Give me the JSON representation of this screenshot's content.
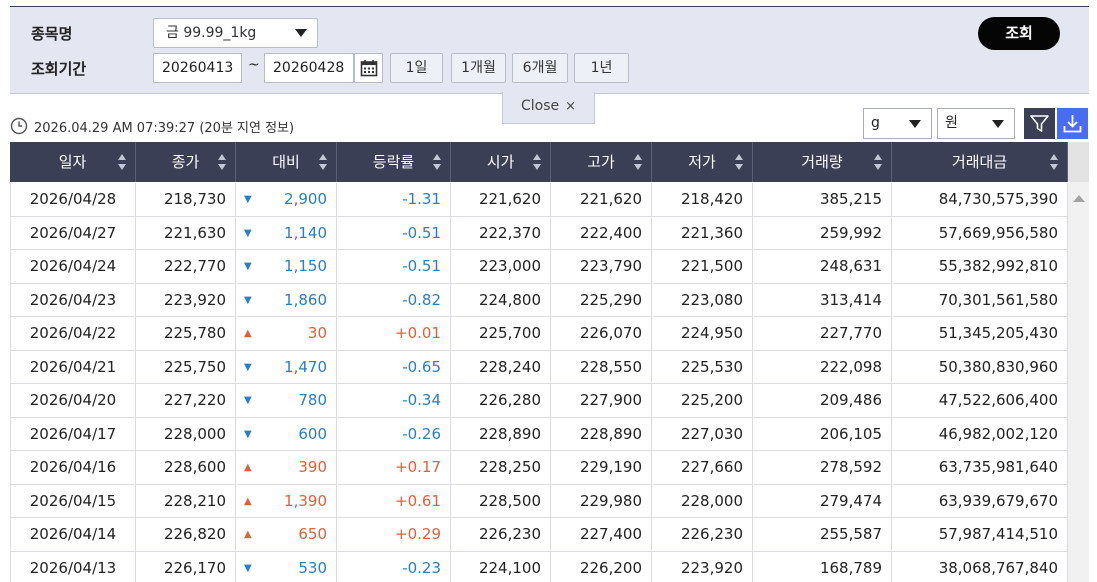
{
  "search": {
    "item_label": "종목명",
    "item_value": "금 99.99_1kg",
    "period_label": "조회기간",
    "date_from": "20260413",
    "date_sep": "~",
    "date_to": "20260428",
    "period_buttons": [
      "1일",
      "1개월",
      "6개월",
      "1년"
    ],
    "search_button": "조회",
    "close_label": "Close",
    "close_x": "×"
  },
  "info": {
    "timestamp": "2026.04.29 AM 07:39:27 (20분 지연 정보)",
    "unit_weight": "g",
    "unit_currency": "원"
  },
  "icons": [
    "clock-icon",
    "calendar-icon",
    "filter-icon",
    "download-icon",
    "chevron-down-icon",
    "sort-icon"
  ],
  "colors": {
    "header_bg": "#3a3f55",
    "panel_bg": "#e4e6f1",
    "down": "#2a7ec4",
    "up": "#e0603c",
    "download": "#4a6cf0"
  },
  "table": {
    "columns": [
      "일자",
      "종가",
      "대비",
      "등락률",
      "시가",
      "고가",
      "저가",
      "거래량",
      "거래대금"
    ],
    "rows": [
      {
        "date": "2026/04/28",
        "close": "218,730",
        "dir": "down",
        "arrow": "▼",
        "change": "2,900",
        "rate": "-1.31",
        "open": "221,620",
        "high": "221,620",
        "low": "218,420",
        "volume": "385,215",
        "amount": "84,730,575,390"
      },
      {
        "date": "2026/04/27",
        "close": "221,630",
        "dir": "down",
        "arrow": "▼",
        "change": "1,140",
        "rate": "-0.51",
        "open": "222,370",
        "high": "222,400",
        "low": "221,360",
        "volume": "259,992",
        "amount": "57,669,956,580"
      },
      {
        "date": "2026/04/24",
        "close": "222,770",
        "dir": "down",
        "arrow": "▼",
        "change": "1,150",
        "rate": "-0.51",
        "open": "223,000",
        "high": "223,790",
        "low": "221,500",
        "volume": "248,631",
        "amount": "55,382,992,810"
      },
      {
        "date": "2026/04/23",
        "close": "223,920",
        "dir": "down",
        "arrow": "▼",
        "change": "1,860",
        "rate": "-0.82",
        "open": "224,800",
        "high": "225,290",
        "low": "223,080",
        "volume": "313,414",
        "amount": "70,301,561,580"
      },
      {
        "date": "2026/04/22",
        "close": "225,780",
        "dir": "up",
        "arrow": "▲",
        "change": "30",
        "rate": "+0.01",
        "open": "225,700",
        "high": "226,070",
        "low": "224,950",
        "volume": "227,770",
        "amount": "51,345,205,430"
      },
      {
        "date": "2026/04/21",
        "close": "225,750",
        "dir": "down",
        "arrow": "▼",
        "change": "1,470",
        "rate": "-0.65",
        "open": "228,240",
        "high": "228,550",
        "low": "225,530",
        "volume": "222,098",
        "amount": "50,380,830,960"
      },
      {
        "date": "2026/04/20",
        "close": "227,220",
        "dir": "down",
        "arrow": "▼",
        "change": "780",
        "rate": "-0.34",
        "open": "226,280",
        "high": "227,900",
        "low": "225,200",
        "volume": "209,486",
        "amount": "47,522,606,400"
      },
      {
        "date": "2026/04/17",
        "close": "228,000",
        "dir": "down",
        "arrow": "▼",
        "change": "600",
        "rate": "-0.26",
        "open": "228,890",
        "high": "228,890",
        "low": "227,030",
        "volume": "206,105",
        "amount": "46,982,002,120"
      },
      {
        "date": "2026/04/16",
        "close": "228,600",
        "dir": "up",
        "arrow": "▲",
        "change": "390",
        "rate": "+0.17",
        "open": "228,250",
        "high": "229,190",
        "low": "227,660",
        "volume": "278,592",
        "amount": "63,735,981,640"
      },
      {
        "date": "2026/04/15",
        "close": "228,210",
        "dir": "up",
        "arrow": "▲",
        "change": "1,390",
        "rate": "+0.61",
        "open": "228,500",
        "high": "229,980",
        "low": "228,000",
        "volume": "279,474",
        "amount": "63,939,679,670"
      },
      {
        "date": "2026/04/14",
        "close": "226,820",
        "dir": "up",
        "arrow": "▲",
        "change": "650",
        "rate": "+0.29",
        "open": "226,230",
        "high": "227,400",
        "low": "226,230",
        "volume": "255,587",
        "amount": "57,987,414,510"
      },
      {
        "date": "2026/04/13",
        "close": "226,170",
        "dir": "down",
        "arrow": "▼",
        "change": "530",
        "rate": "-0.23",
        "open": "224,100",
        "high": "226,200",
        "low": "223,920",
        "volume": "168,789",
        "amount": "38,068,767,840"
      }
    ]
  }
}
